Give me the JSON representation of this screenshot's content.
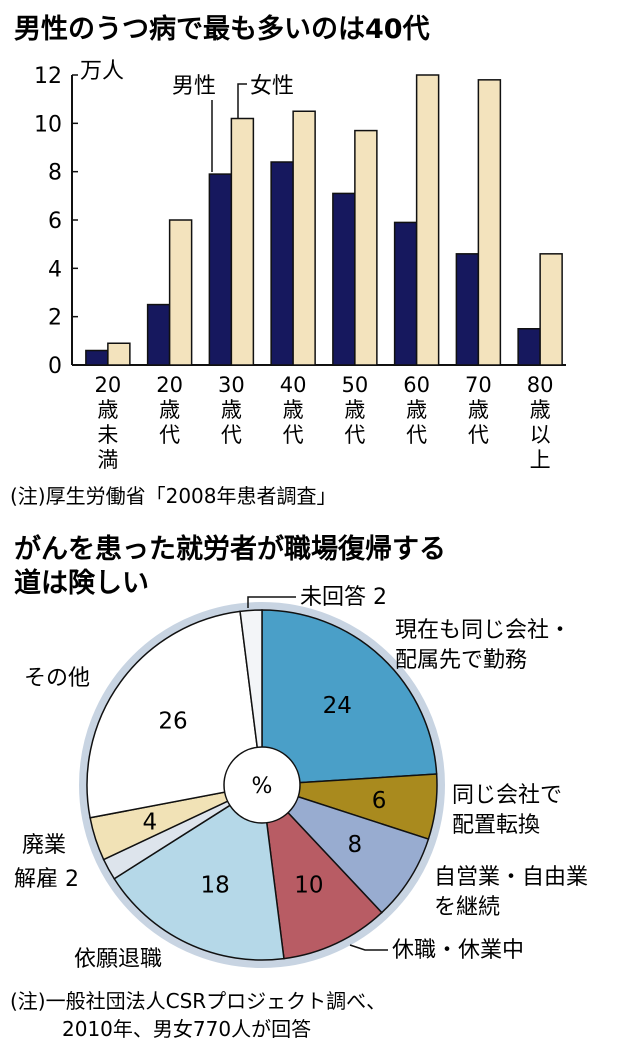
{
  "chart_data": [
    {
      "type": "bar",
      "title": "男性のうつ病で最も多いのは40代",
      "unit": "万人",
      "categories": [
        [
          "20",
          "歳",
          "未",
          "満"
        ],
        [
          "20",
          "歳",
          "代"
        ],
        [
          "30",
          "歳",
          "代"
        ],
        [
          "40",
          "歳",
          "代"
        ],
        [
          "50",
          "歳",
          "代"
        ],
        [
          "60",
          "歳",
          "代"
        ],
        [
          "70",
          "歳",
          "代"
        ],
        [
          "80",
          "歳",
          "以",
          "上"
        ]
      ],
      "series": [
        {
          "name": "男性",
          "color": "#16185e",
          "values": [
            0.6,
            2.5,
            7.9,
            8.4,
            7.1,
            5.9,
            4.6,
            1.5
          ]
        },
        {
          "name": "女性",
          "color": "#f3e3bd",
          "values": [
            0.9,
            6.0,
            10.2,
            10.5,
            9.7,
            12.0,
            11.8,
            4.6
          ]
        }
      ],
      "ylim": [
        0,
        12
      ],
      "yticks": [
        "0",
        "2",
        "4",
        "6",
        "8",
        "10",
        "12"
      ],
      "grid": false,
      "legend": "top-center",
      "note": "(注)厚生労働省「2008年患者調査」"
    },
    {
      "type": "pie",
      "title": [
        "がんを患った就労者が職場復帰する",
        "道は険しい"
      ],
      "center_label": "%",
      "slices": [
        {
          "label": [
            "現在も同じ会社・",
            "配属先で勤務"
          ],
          "value": 24,
          "value_text": "24",
          "color": "#4a9fc8"
        },
        {
          "label": [
            "同じ会社で",
            "配置転換"
          ],
          "value": 6,
          "value_text": "6",
          "color": "#a98a1e"
        },
        {
          "label": [
            "自営業・自由業",
            "を継続"
          ],
          "value": 8,
          "value_text": "8",
          "color": "#98acd0"
        },
        {
          "label": [
            "休職・休業中"
          ],
          "value": 10,
          "value_text": "10",
          "color": "#b85c64"
        },
        {
          "label": [
            "依願退職"
          ],
          "value": 18,
          "value_text": "18",
          "color": "#b5d8e8"
        },
        {
          "label": [
            "解雇"
          ],
          "value": 2,
          "value_text": "2",
          "color": "#dde4ec"
        },
        {
          "label": [
            "廃業"
          ],
          "value": 4,
          "value_text": "4",
          "color": "#f1e2b6"
        },
        {
          "label": [
            "その他"
          ],
          "value": 26,
          "value_text": "26",
          "color": "#ffffff"
        },
        {
          "label": [
            "未回答"
          ],
          "value": 2,
          "value_text": "2",
          "color": "#f3f5f8"
        }
      ],
      "note": [
        "(注)一般社団法人CSRプロジェクト調べ、",
        "2010年、男女770人が回答"
      ]
    }
  ]
}
